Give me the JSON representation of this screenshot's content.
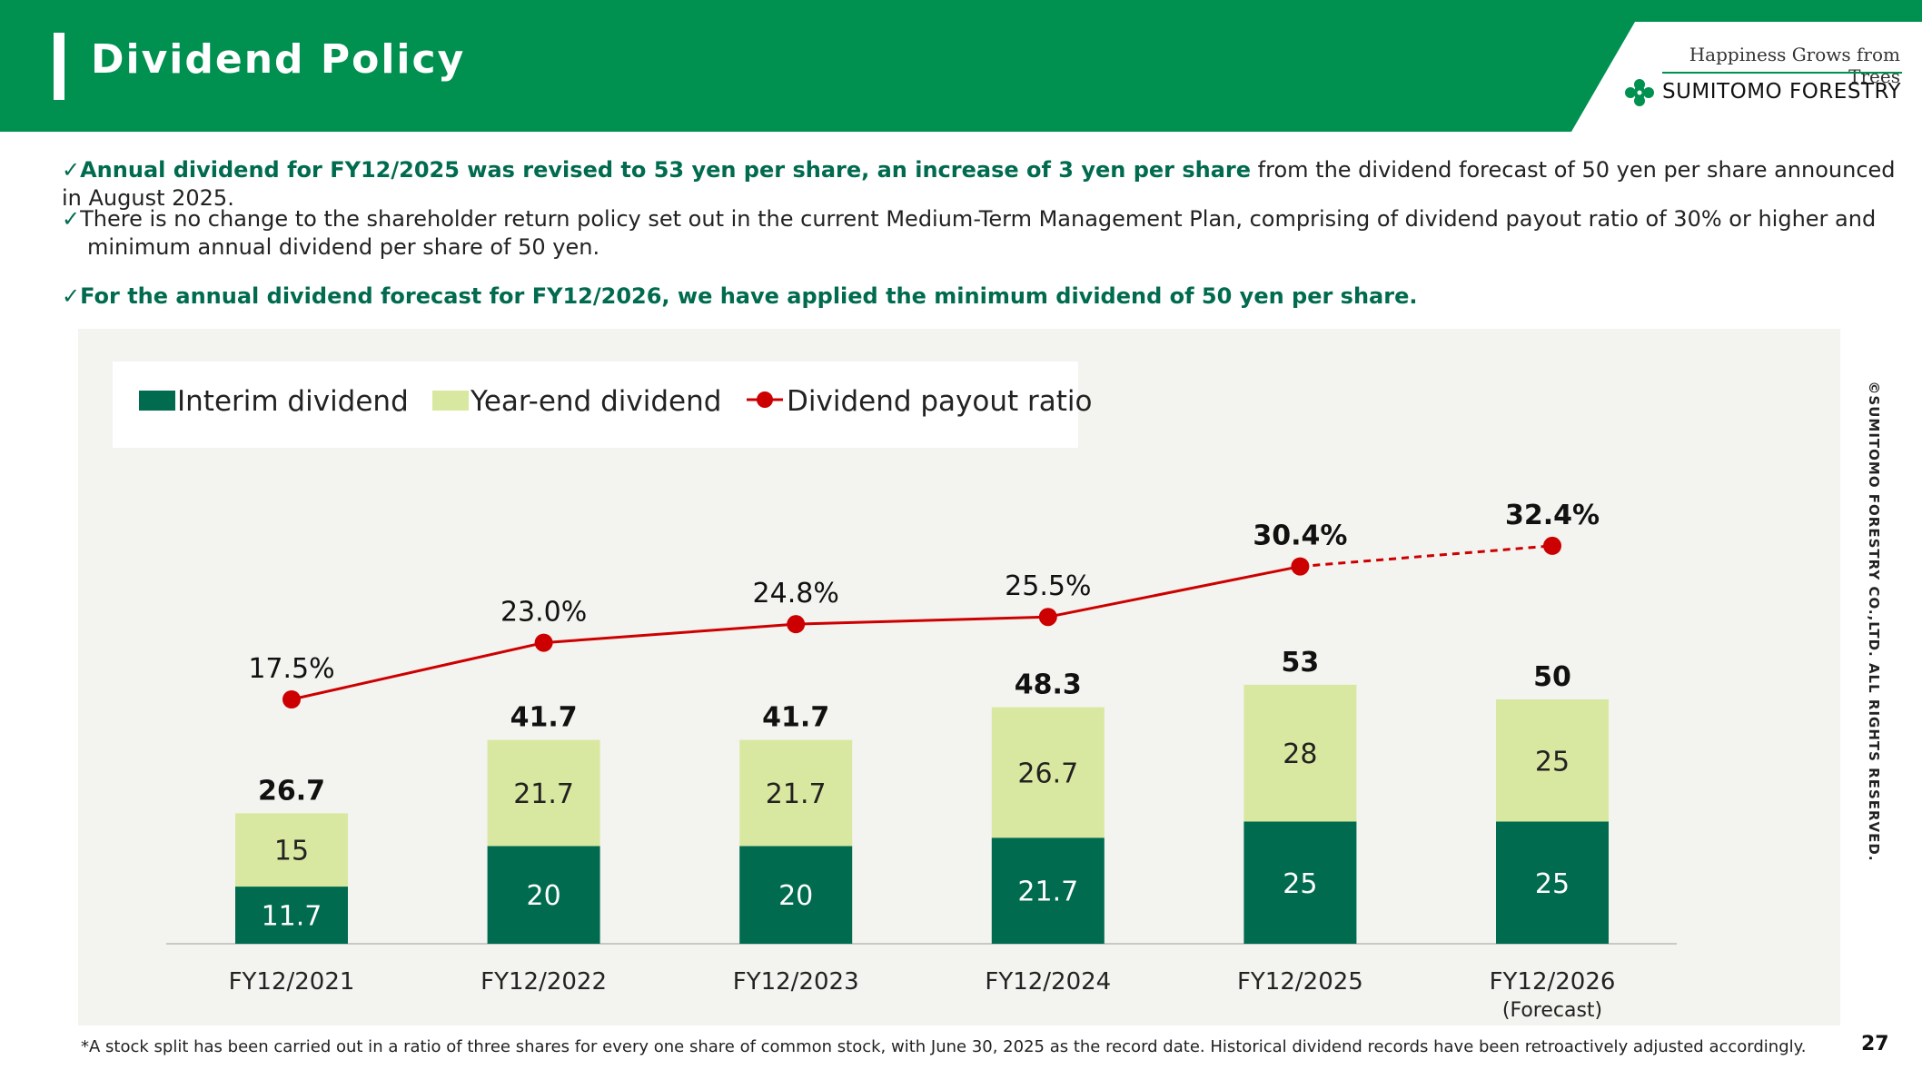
{
  "header": {
    "title": "Dividend Policy"
  },
  "brand": {
    "tagline": "Happiness Grows from Trees",
    "name": "SUMITOMO FORESTRY"
  },
  "bullets": [
    {
      "bold": "Annual dividend for FY12/2025 was revised to 53 yen per share, an increase of 3 yen per share",
      "rest": " from the dividend forecast of 50 yen per share announced in August 2025."
    },
    {
      "line1": "There is no change to the shareholder return policy set out in the current Medium-Term Management Plan, comprising of dividend payout ratio of 30% or higher and",
      "line2": "minimum annual dividend per share of 50 yen."
    },
    {
      "bold": "For the annual dividend forecast for FY12/2026, we have applied the minimum dividend of 50 yen per share."
    }
  ],
  "chart_data": {
    "type": "bar",
    "stacked": true,
    "categories": [
      "FY12/2021",
      "FY12/2022",
      "FY12/2023",
      "FY12/2024",
      "FY12/2025",
      "FY12/2026"
    ],
    "category_sublabels": [
      "",
      "",
      "",
      "",
      "",
      "(Forecast)"
    ],
    "series": [
      {
        "name": "Interim dividend",
        "color": "#006B4E",
        "values": [
          11.7,
          20,
          20,
          21.7,
          25,
          25
        ],
        "labels": [
          "11.7",
          "20",
          "20",
          "21.7",
          "25",
          "25"
        ]
      },
      {
        "name": "Year-end dividend",
        "color": "#D9E8A0",
        "values": [
          15,
          21.7,
          21.7,
          26.7,
          28,
          25
        ],
        "labels": [
          "15",
          "21.7",
          "21.7",
          "26.7",
          "28",
          "25"
        ]
      }
    ],
    "totals": [
      "26.7",
      "41.7",
      "41.7",
      "48.3",
      "53",
      "50"
    ],
    "line_series": {
      "name": "Dividend payout ratio",
      "color": "#CC0000",
      "values": [
        17.5,
        23.0,
        24.8,
        25.5,
        30.4,
        32.4
      ],
      "labels": [
        "17.5%",
        "23.0%",
        "24.8%",
        "25.5%",
        "30.4%",
        "32.4%"
      ],
      "bold_labels": [
        false,
        false,
        false,
        false,
        true,
        true
      ],
      "forecast_dashed_from_index": 4
    },
    "legend_position": "top-left",
    "grid": false
  },
  "footnote": "*A stock split has been carried out in a ratio of three shares for every one share of common stock, with June 30, 2025 as the record date. Historical dividend records have been retroactively adjusted accordingly.",
  "copyright": "©SUMITOMO FORESTRY CO.,LTD. ALL RIGHTS RESERVED.",
  "page_number": "27"
}
